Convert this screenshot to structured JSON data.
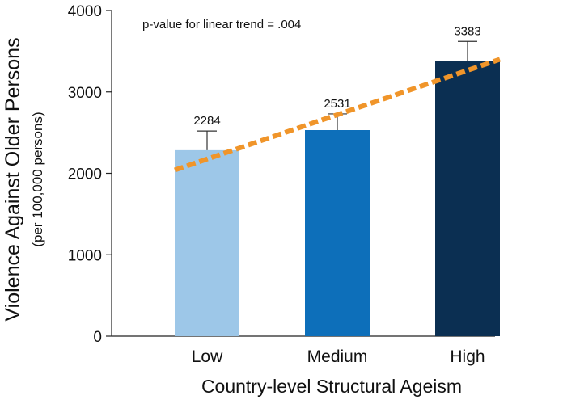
{
  "chart_data": {
    "type": "bar",
    "title": "",
    "xlabel": "Country-level Structural Ageism",
    "ylabel": "Violence Against Older Persons",
    "ylabel_sub": "(per 100,000 persons)",
    "categories": [
      "Low",
      "Medium",
      "High"
    ],
    "values": [
      2284,
      2531,
      3383
    ],
    "data_labels": [
      "2284",
      "2531",
      "3383"
    ],
    "error_upper": [
      2520,
      2730,
      3620
    ],
    "bar_colors": [
      "#9dc7e8",
      "#0d6fba",
      "#0b2f52"
    ],
    "trend_line": {
      "color": "#f0952a",
      "style": "dashed",
      "start_value": 2040,
      "end_value": 3400
    },
    "annotation": "p-value for linear trend = .004",
    "ylim": [
      0,
      4000
    ],
    "yticks": [
      0,
      1000,
      2000,
      3000,
      4000
    ],
    "ytick_labels": [
      "0",
      "1000",
      "2000",
      "3000",
      "4000"
    ],
    "grid": false,
    "legend": "none"
  }
}
